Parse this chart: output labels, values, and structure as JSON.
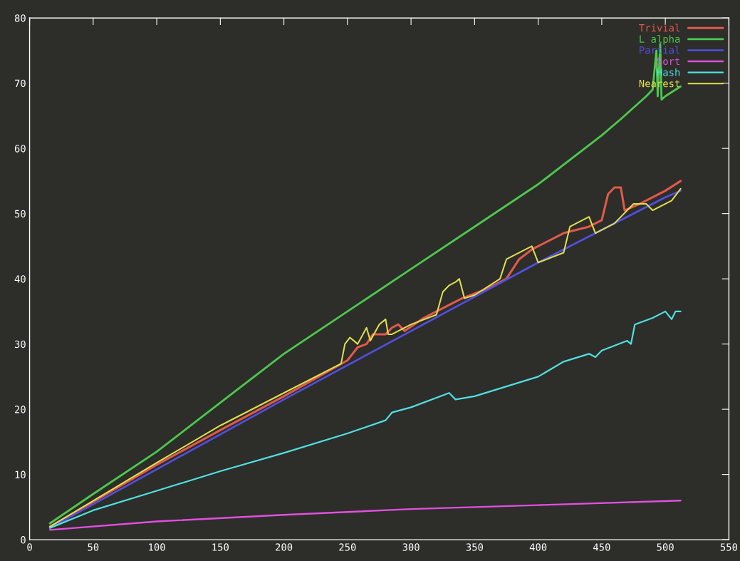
{
  "chart_data": {
    "type": "line",
    "xlim": [
      0,
      550
    ],
    "ylim": [
      0,
      80
    ],
    "xticks": [
      0,
      50,
      100,
      150,
      200,
      250,
      300,
      350,
      400,
      450,
      500,
      550
    ],
    "yticks": [
      0,
      10,
      20,
      30,
      40,
      50,
      60,
      70,
      80
    ],
    "grid": false,
    "legend": "top right",
    "marker": "none",
    "line_style": "solid",
    "series": [
      {
        "name": "Trivial",
        "color": "#e05a4a",
        "x": [
          16,
          50,
          100,
          150,
          200,
          250,
          258,
          265,
          270,
          280,
          285,
          290,
          295,
          310,
          340,
          360,
          375,
          385,
          395,
          400,
          420,
          440,
          450,
          455,
          460,
          465,
          468,
          480,
          500,
          512
        ],
        "values": [
          2,
          5.8,
          11.5,
          16.8,
          22,
          27.5,
          29.5,
          30,
          31.5,
          31.5,
          32.5,
          33,
          32,
          34,
          37,
          38.5,
          40,
          43,
          44.5,
          45,
          47,
          48,
          49,
          53,
          54,
          54,
          50.5,
          51.5,
          53.5,
          55
        ]
      },
      {
        "name": "L alpha",
        "color": "#4cc84c",
        "x": [
          16,
          50,
          100,
          150,
          200,
          250,
          300,
          350,
          400,
          450,
          465,
          485,
          490,
          493,
          494,
          496,
          497,
          500,
          512
        ],
        "values": [
          2.5,
          7,
          13.5,
          21,
          28.5,
          35,
          41.5,
          48,
          54.5,
          62,
          64.5,
          68,
          69,
          75,
          68,
          76,
          67.5,
          68,
          69.5
        ]
      },
      {
        "name": "Partial",
        "color": "#5050e0",
        "x": [
          16,
          100,
          200,
          300,
          400,
          450,
          500,
          512
        ],
        "values": [
          1.8,
          10.8,
          21.5,
          32,
          42.5,
          47.5,
          52.5,
          53.5
        ]
      },
      {
        "name": "Sort",
        "color": "#e050e0",
        "x": [
          16,
          100,
          200,
          300,
          400,
          512
        ],
        "values": [
          1.5,
          2.8,
          3.8,
          4.7,
          5.3,
          6
        ]
      },
      {
        "name": "Hash",
        "color": "#50e0e0",
        "x": [
          16,
          50,
          100,
          150,
          200,
          250,
          280,
          285,
          300,
          330,
          335,
          350,
          400,
          420,
          440,
          445,
          450,
          470,
          473,
          476,
          490,
          500,
          505,
          508,
          512
        ],
        "values": [
          1.8,
          4.5,
          7.5,
          10.5,
          13.3,
          16.3,
          18.3,
          19.5,
          20.3,
          22.5,
          21.5,
          22,
          25,
          27.3,
          28.5,
          28,
          29,
          30.5,
          30,
          33,
          34,
          35,
          33.8,
          35,
          35
        ]
      },
      {
        "name": "Nearest",
        "color": "#e0e050",
        "x": [
          16,
          100,
          150,
          200,
          245,
          248,
          252,
          258,
          265,
          268,
          275,
          280,
          282,
          285,
          300,
          320,
          325,
          330,
          335,
          338,
          342,
          350,
          370,
          375,
          395,
          400,
          420,
          425,
          440,
          445,
          460,
          475,
          485,
          490,
          505,
          512
        ],
        "values": [
          2,
          11.8,
          17.5,
          22.5,
          27,
          30,
          31,
          30,
          32.5,
          30.5,
          33,
          33.8,
          31.5,
          31.5,
          33,
          34.5,
          38,
          39,
          39.5,
          40,
          37,
          37.5,
          40,
          43,
          45,
          42.5,
          44,
          48,
          49.5,
          47,
          48.5,
          51.5,
          51.5,
          50.5,
          52,
          53.8
        ]
      }
    ]
  }
}
